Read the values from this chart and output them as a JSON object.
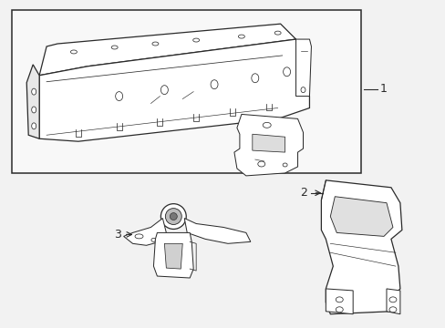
{
  "bg_color": "#f2f2f2",
  "line_color": "#2a2a2a",
  "box_bg": "#f8f8f8",
  "label1": "1",
  "label2": "2",
  "label3": "3",
  "fig_width": 4.89,
  "fig_height": 3.6,
  "dpi": 100
}
